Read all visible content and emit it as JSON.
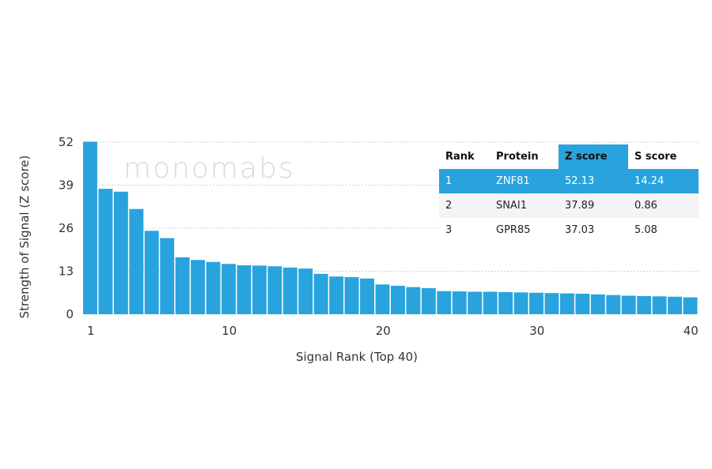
{
  "chart_data": {
    "type": "bar",
    "ylabel": "Strength of Signal (Z score)",
    "xlabel": "Signal Rank (Top 40)",
    "ylim": [
      0,
      52
    ],
    "yticks": [
      0,
      13,
      26,
      39,
      52
    ],
    "xticks": [
      1,
      10,
      20,
      30,
      40
    ],
    "grid": "horizontal dashed",
    "bar_color": "#29a3dd",
    "x": [
      1,
      2,
      3,
      4,
      5,
      6,
      7,
      8,
      9,
      10,
      11,
      12,
      13,
      14,
      15,
      16,
      17,
      18,
      19,
      20,
      21,
      22,
      23,
      24,
      25,
      26,
      27,
      28,
      29,
      30,
      31,
      32,
      33,
      34,
      35,
      36,
      37,
      38,
      39,
      40
    ],
    "values": [
      52.13,
      37.89,
      37.03,
      31.8,
      25.2,
      23.0,
      17.2,
      16.4,
      15.8,
      15.2,
      14.8,
      14.7,
      14.5,
      14.1,
      13.8,
      12.2,
      11.4,
      11.2,
      10.8,
      9.0,
      8.6,
      8.2,
      7.9,
      7.0,
      6.9,
      6.8,
      6.8,
      6.7,
      6.6,
      6.5,
      6.4,
      6.3,
      6.2,
      6.0,
      5.8,
      5.6,
      5.5,
      5.4,
      5.3,
      5.1
    ]
  },
  "watermark": "monomabs",
  "table": {
    "headers": [
      "Rank",
      "Protein",
      "Z score",
      "S score"
    ],
    "rows": [
      [
        "1",
        "ZNF81",
        "52.13",
        "14.24"
      ],
      [
        "2",
        "SNAI1",
        "37.89",
        "0.86"
      ],
      [
        "3",
        "GPR85",
        "37.03",
        "5.08"
      ]
    ],
    "highlight_color": "#29a3dd"
  }
}
